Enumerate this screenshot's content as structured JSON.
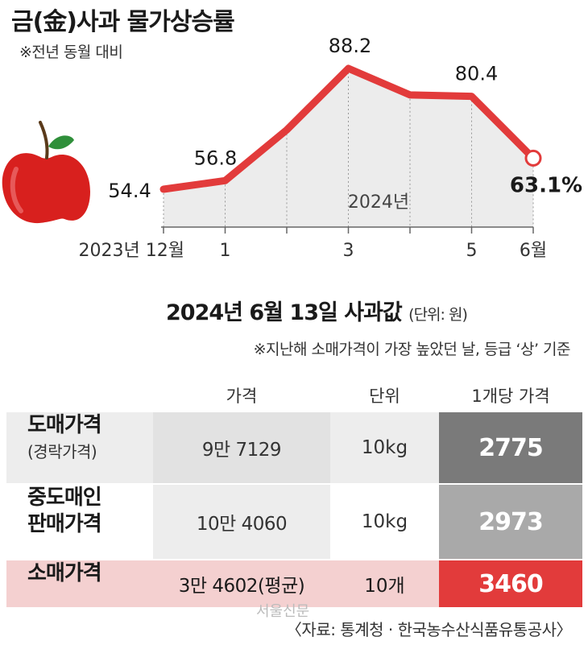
{
  "title": "금(金)사과 물가상승률",
  "subtitle": "※전년 동월 대비",
  "chart_data": {
    "type": "line",
    "title": "금(金)사과 물가상승률",
    "subtitle": "※전년 동월 대비",
    "x_labels": [
      "2023년 12월",
      "1",
      "",
      "3",
      "",
      "5",
      "6월"
    ],
    "year_label": "2024년",
    "values": [
      54.4,
      56.8,
      71.0,
      88.2,
      80.8,
      80.4,
      63.1
    ],
    "data_labels": [
      "54.4",
      "56.8",
      "",
      "88.2",
      "",
      "80.4",
      "63.1%"
    ],
    "line_color": "#e23b3b",
    "fill_color": "#ececec",
    "ylim": [
      40,
      95
    ],
    "grid": "vertical dotted"
  },
  "table": {
    "title": "2024년 6월 13일 사과값",
    "unit_note": "(단위: 원)",
    "note": "※지난해 소매가격이 가장 높았던 날, 등급 ‘상’ 기준",
    "headers": [
      "가격",
      "단위",
      "1개당 가격"
    ],
    "rows": [
      {
        "label": "도매가격",
        "sub": "(경락가격)",
        "price": "9만 7129",
        "unit": "10kg",
        "per_item": "2775"
      },
      {
        "label": "중도매인",
        "sub": "판매가격",
        "price": "10만 4060",
        "unit": "10kg",
        "per_item": "2973"
      },
      {
        "label": "소매가격",
        "sub": "",
        "price": "3만 4602(평균)",
        "unit": "10개",
        "per_item": "3460"
      }
    ]
  },
  "colors": {
    "red": "#e23b3b",
    "dark_gray": "#7a7a7a",
    "mid_gray": "#a9a9a9",
    "pink": "#f4d0d0"
  },
  "watermark": "서울신문",
  "source": "〈자료: 통계청 · 한국농수산식품유통공사〉"
}
